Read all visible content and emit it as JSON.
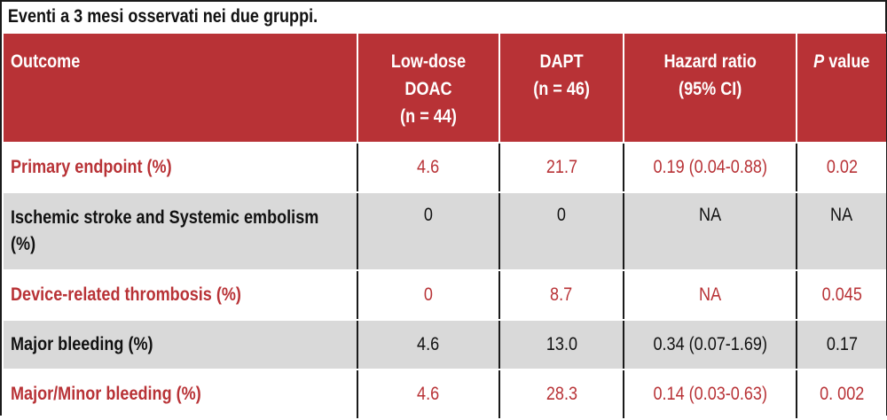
{
  "caption": "Eventi a 3 mesi osservati nei due gruppi.",
  "header": {
    "outcome": "Outcome",
    "low_dose_line1": "Low-dose",
    "low_dose_line2": "DOAC",
    "low_dose_line3": "(n = 44)",
    "dapt_line1": "DAPT",
    "dapt_line2": "(n = 46)",
    "hr_line1": "Hazard ratio",
    "hr_line2": "(95% CI)",
    "p_italic": "P",
    "p_rest": " value"
  },
  "colors": {
    "accent": "#b83236",
    "gray_row": "#d9d9d9"
  },
  "rows": [
    {
      "outcome": "Primary endpoint (%)",
      "low_dose": "4.6",
      "dapt": "21.7",
      "hr": "0.19 (0.04-0.88)",
      "p": "0.02"
    },
    {
      "outcome": "Ischemic stroke and Systemic embolism (%)",
      "low_dose": "0",
      "dapt": "0",
      "hr": "NA",
      "p": "NA"
    },
    {
      "outcome": "Device-related thrombosis (%)",
      "low_dose": "0",
      "dapt": "8.7",
      "hr": "NA",
      "p": "0.045"
    },
    {
      "outcome": "Major bleeding (%)",
      "low_dose": "4.6",
      "dapt": "13.0",
      "hr": "0.34 (0.07-1.69)",
      "p": "0.17"
    },
    {
      "outcome": "Major/Minor bleeding (%)",
      "low_dose": "4.6",
      "dapt": "28.3",
      "hr": "0.14 (0.03-0.63)",
      "p": "0. 002"
    }
  ]
}
